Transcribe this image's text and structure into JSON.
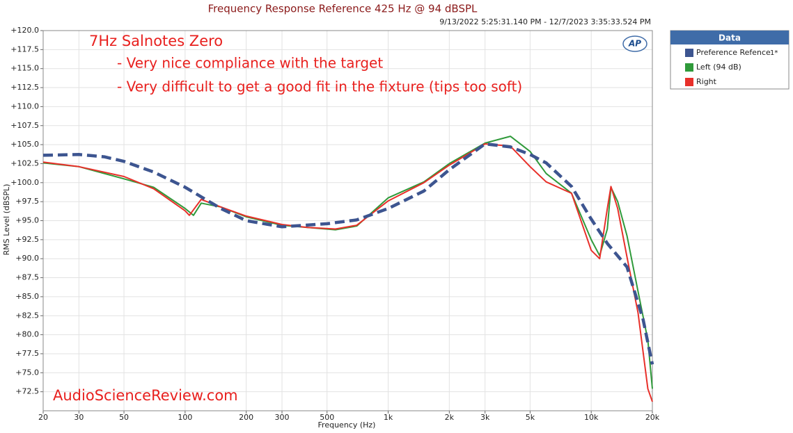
{
  "chart_data": {
    "type": "line",
    "title": "Frequency Response Reference 425 Hz @ 94 dBSPL",
    "subtitle": "9/13/2022 5:25:31.140 PM - 12/7/2023 3:35:33.524 PM",
    "x_label": "Frequency (Hz)",
    "y_label": "RMS Level (dBSPL)",
    "legend_title": "Data",
    "legend_tag": "1*",
    "annotations": [
      "7Hz Salnotes Zero",
      "- Very nice compliance with the target",
      "- Very difficult to get a good fit in the fixture (tips too soft)",
      "AudioScienceReview.com",
      "AP"
    ],
    "log_x": true,
    "grid": true,
    "xlim": [
      20,
      20000
    ],
    "ylim": [
      70,
      120
    ],
    "xticks": [
      20,
      30,
      50,
      100,
      200,
      300,
      500,
      {
        "value": 1000,
        "label": "1k"
      },
      {
        "value": 2000,
        "label": "2k"
      },
      {
        "value": 3000,
        "label": "3k"
      },
      {
        "value": 5000,
        "label": "5k"
      },
      {
        "value": 10000,
        "label": "10k"
      },
      {
        "value": 20000,
        "label": "20k"
      }
    ],
    "yticks": [
      {
        "value": 72.5,
        "label": "+72.5"
      },
      {
        "value": 75,
        "label": "+75.0"
      },
      {
        "value": 77.5,
        "label": "+77.5"
      },
      {
        "value": 80,
        "label": "+80.0"
      },
      {
        "value": 82.5,
        "label": "+82.5"
      },
      {
        "value": 85,
        "label": "+85.0"
      },
      {
        "value": 87.5,
        "label": "+87.5"
      },
      {
        "value": 90,
        "label": "+90.0"
      },
      {
        "value": 92.5,
        "label": "+92.5"
      },
      {
        "value": 95,
        "label": "+95.0"
      },
      {
        "value": 97.5,
        "label": "+97.5"
      },
      {
        "value": 100,
        "label": "+100.0"
      },
      {
        "value": 102.5,
        "label": "+102.5"
      },
      {
        "value": 105,
        "label": "+105.0"
      },
      {
        "value": 107.5,
        "label": "+107.5"
      },
      {
        "value": 110,
        "label": "+110.0"
      },
      {
        "value": 112.5,
        "label": "+112.5"
      },
      {
        "value": 115,
        "label": "+115.0"
      },
      {
        "value": 117.5,
        "label": "+117.5"
      },
      {
        "value": 120,
        "label": "+120.0"
      }
    ],
    "series": [
      {
        "name": "Preference Refence",
        "color": "#3d5590",
        "dashed": true,
        "x": [
          20,
          30,
          40,
          50,
          70,
          100,
          150,
          200,
          300,
          500,
          700,
          1000,
          1500,
          2000,
          3000,
          4000,
          5000,
          6000,
          8000,
          10000,
          12000,
          15000,
          18000,
          20000
        ],
        "values": [
          103.6,
          103.7,
          103.4,
          102.8,
          101.4,
          99.4,
          96.6,
          95.0,
          94.2,
          94.6,
          95.1,
          96.6,
          98.9,
          101.7,
          105.1,
          104.7,
          103.7,
          102.6,
          99.5,
          95.2,
          92.0,
          88.9,
          82.0,
          76.1
        ]
      },
      {
        "name": "Left (94 dB)",
        "color": "#2f9a3a",
        "x": [
          20,
          30,
          50,
          70,
          100,
          110,
          120,
          150,
          200,
          300,
          400,
          550,
          700,
          1000,
          1500,
          2000,
          3000,
          4000,
          5000,
          6000,
          8000,
          10000,
          11000,
          12000,
          12500,
          13500,
          15000,
          17000,
          19000,
          20000
        ],
        "values": [
          102.6,
          102.1,
          100.5,
          99.4,
          96.6,
          95.7,
          97.3,
          96.8,
          95.5,
          94.4,
          94.1,
          93.8,
          94.3,
          98.0,
          100.1,
          102.5,
          105.2,
          106.1,
          104.1,
          101.2,
          98.6,
          92.5,
          90.4,
          93.9,
          99.4,
          97.5,
          93.0,
          85.7,
          79.3,
          72.9
        ]
      },
      {
        "name": "Right",
        "color": "#e8302a",
        "x": [
          20,
          30,
          50,
          70,
          100,
          105,
          120,
          150,
          200,
          300,
          400,
          550,
          700,
          1000,
          1500,
          2000,
          3000,
          4000,
          5000,
          6000,
          8000,
          10000,
          11000,
          12000,
          12500,
          13500,
          15000,
          17000,
          19000,
          20000
        ],
        "values": [
          102.7,
          102.1,
          100.8,
          99.2,
          96.3,
          95.7,
          97.8,
          96.8,
          95.6,
          94.5,
          94.1,
          93.9,
          94.4,
          97.6,
          100.0,
          102.3,
          105.1,
          104.8,
          102.1,
          100.1,
          98.6,
          91.1,
          90.0,
          96.6,
          99.5,
          96.6,
          90.2,
          82.9,
          72.9,
          71.2
        ]
      }
    ]
  }
}
